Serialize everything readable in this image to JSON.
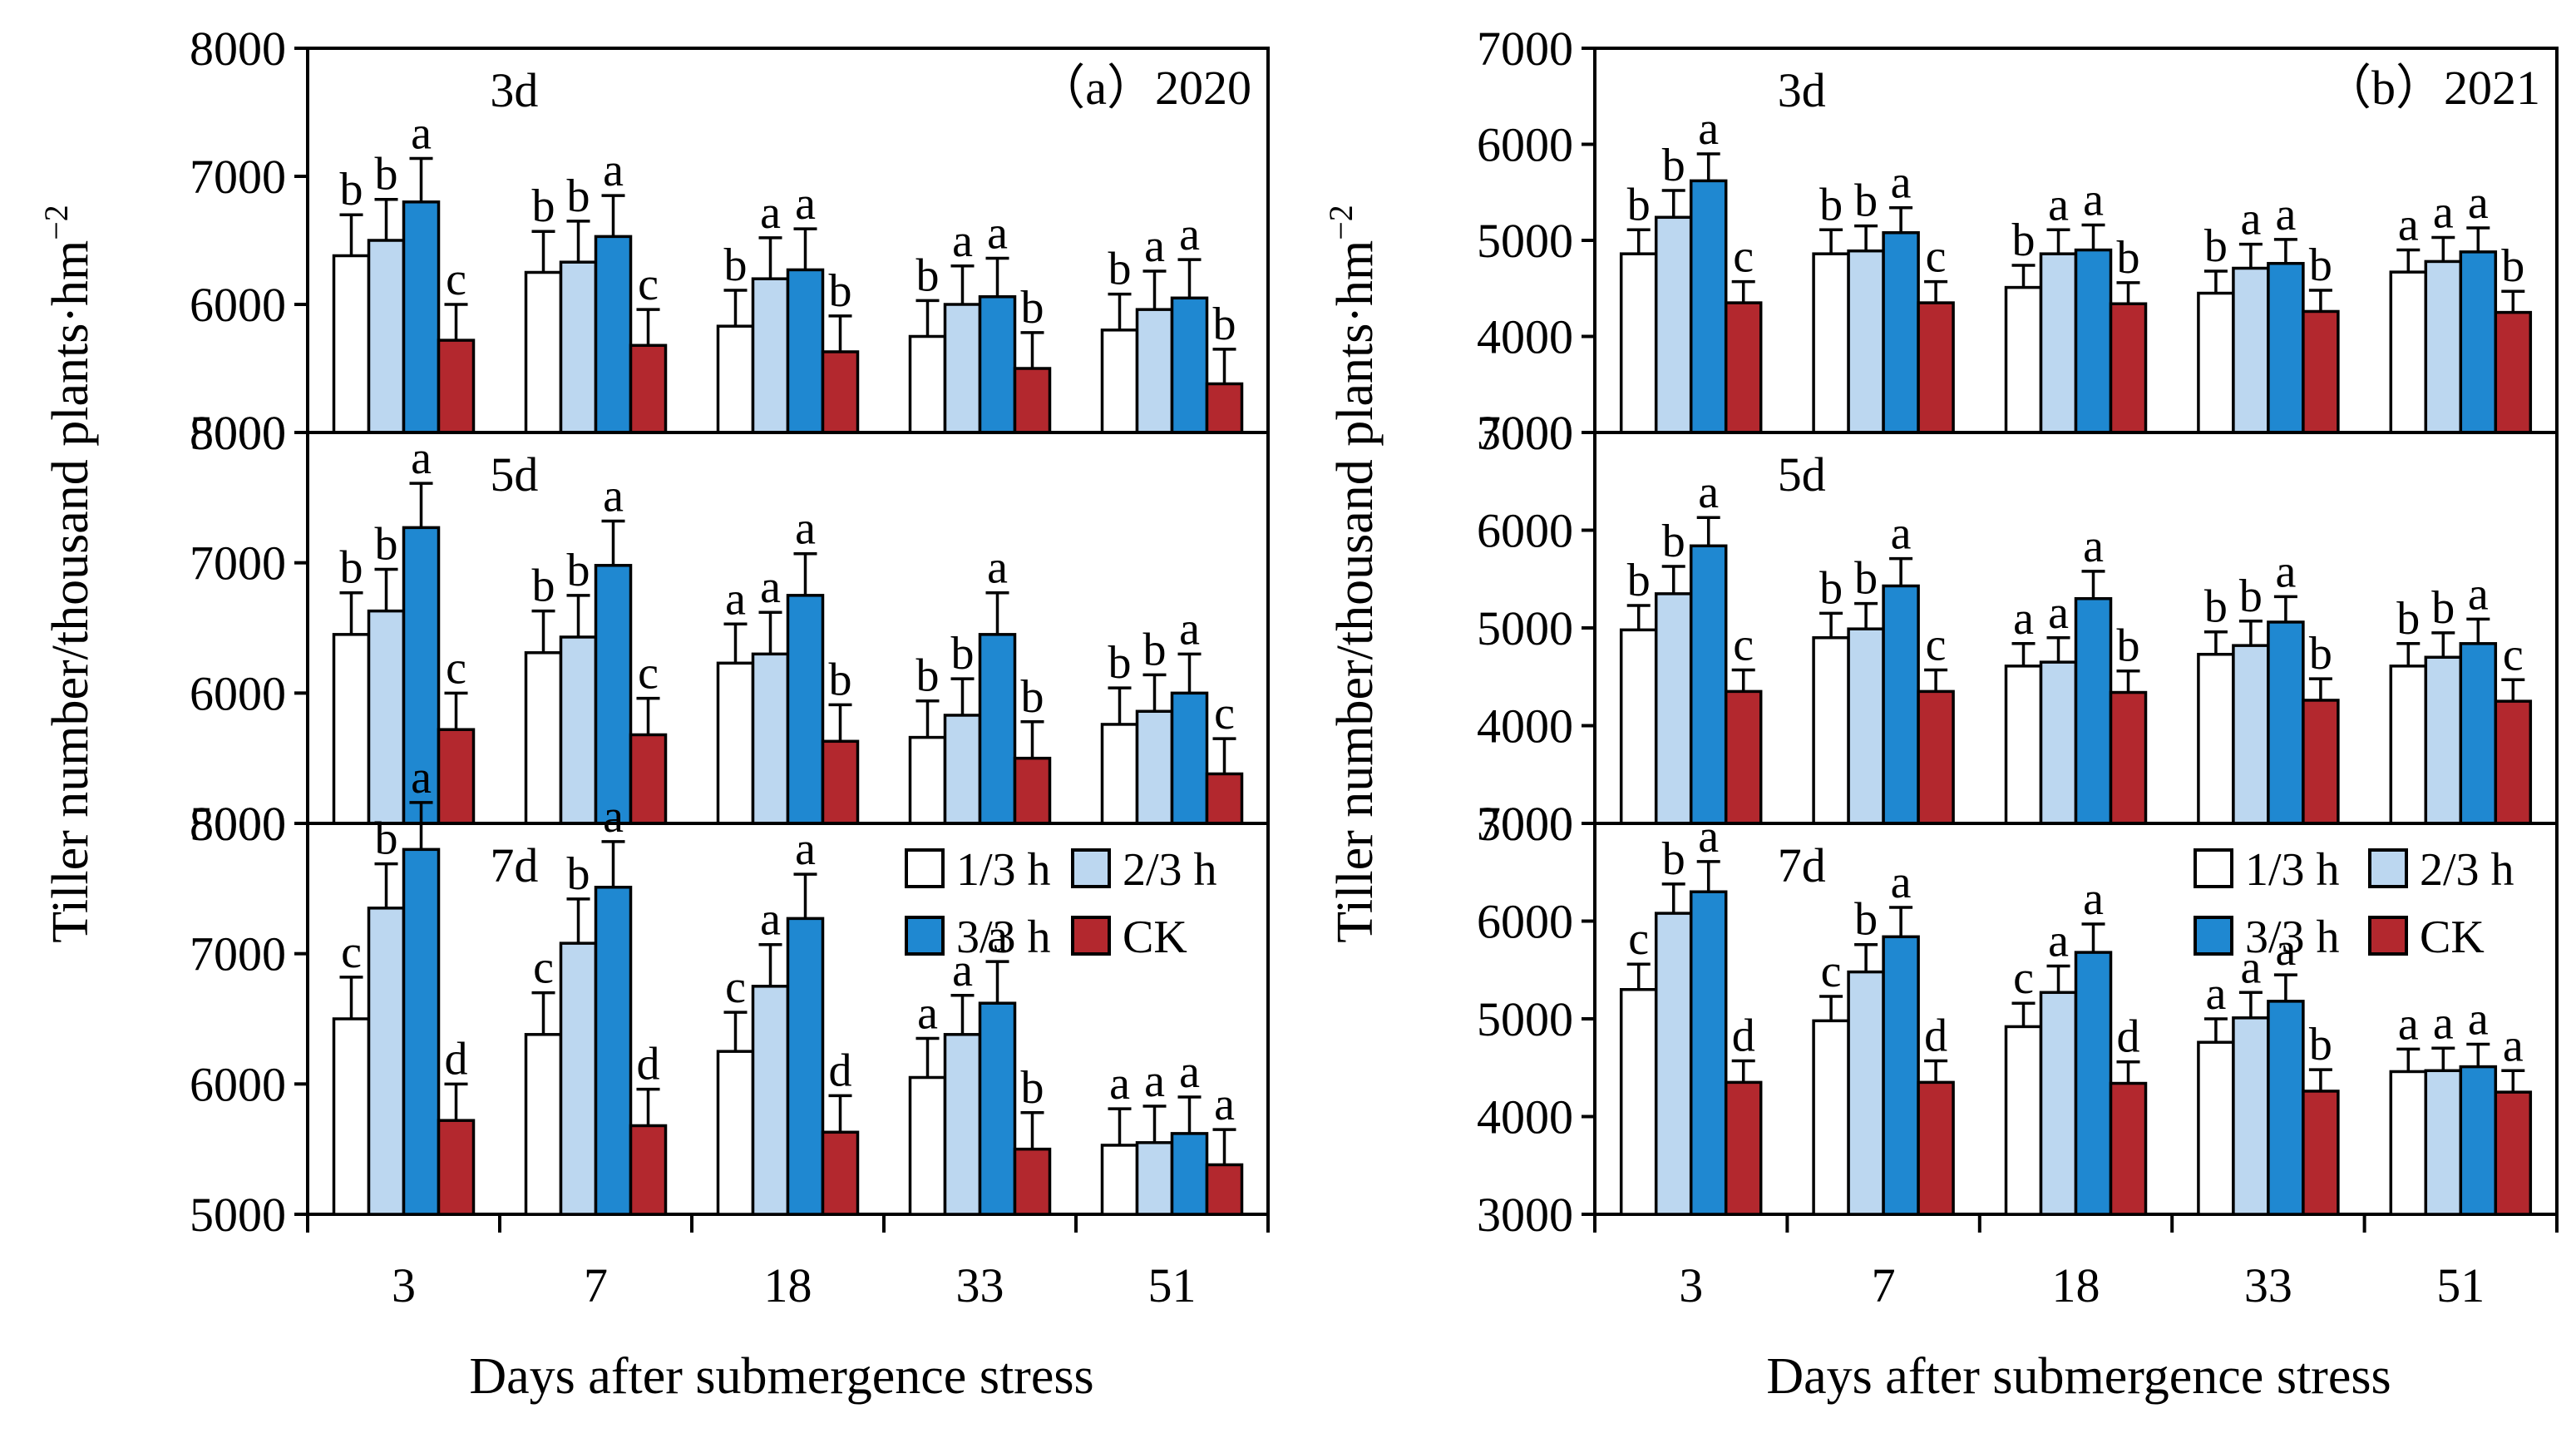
{
  "figure": {
    "ylabel": "Tiller number/thousand plants·hm",
    "ylabel_sup": "−2",
    "xlabel": "Days after submergence stress"
  },
  "legend": [
    {
      "key": "h13",
      "label": "1/3 h",
      "color": "#ffffff"
    },
    {
      "key": "h23",
      "label": "2/3 h",
      "color": "#bcd7f0"
    },
    {
      "key": "h33",
      "label": "3/3 h",
      "color": "#1f88d1"
    },
    {
      "key": "ck",
      "label": "CK",
      "color": "#b3282e"
    }
  ],
  "chart_data": [
    {
      "type": "bar",
      "panel": "(a)",
      "title": "（a）2020",
      "xlabel": "Days after submergence stress",
      "ylabel": "Tiller number/thousand plants·hm−2",
      "categories": [
        "3",
        "7",
        "18",
        "33",
        "51"
      ],
      "subplots": [
        {
          "label": "3d",
          "ylim": [
            5000,
            8000
          ],
          "yticks": [
            "5000",
            "6000",
            "7000",
            "8000"
          ],
          "series": [
            {
              "name": "1/3 h",
              "values": [
                6380,
                6250,
                5830,
                5750,
                5800
              ],
              "errors": [
                320,
                320,
                280,
                280,
                280
              ],
              "letters": [
                "b",
                "b",
                "b",
                "b",
                "b"
              ]
            },
            {
              "name": "2/3 h",
              "values": [
                6500,
                6330,
                6200,
                6000,
                5960
              ],
              "errors": [
                320,
                320,
                320,
                300,
                300
              ],
              "letters": [
                "b",
                "b",
                "a",
                "a",
                "a"
              ]
            },
            {
              "name": "3/3 h",
              "values": [
                6800,
                6530,
                6270,
                6060,
                6050
              ],
              "errors": [
                340,
                320,
                320,
                300,
                300
              ],
              "letters": [
                "a",
                "a",
                "a",
                "a",
                "a"
              ]
            },
            {
              "name": "CK",
              "values": [
                5720,
                5680,
                5630,
                5500,
                5380
              ],
              "errors": [
                280,
                280,
                280,
                280,
                270
              ],
              "letters": [
                "c",
                "c",
                "b",
                "b",
                "b"
              ]
            }
          ]
        },
        {
          "label": "5d",
          "ylim": [
            5000,
            8000
          ],
          "yticks": [
            "5000",
            "6000",
            "7000",
            "8000"
          ],
          "series": [
            {
              "name": "1/3 h",
              "values": [
                6450,
                6310,
                6230,
                5660,
                5760
              ],
              "errors": [
                320,
                320,
                300,
                280,
                280
              ],
              "letters": [
                "b",
                "b",
                "a",
                "b",
                "b"
              ]
            },
            {
              "name": "2/3 h",
              "values": [
                6630,
                6430,
                6300,
                5830,
                5860
              ],
              "errors": [
                320,
                320,
                320,
                280,
                280
              ],
              "letters": [
                "b",
                "b",
                "a",
                "b",
                "b"
              ]
            },
            {
              "name": "3/3 h",
              "values": [
                7270,
                6980,
                6750,
                6450,
                6000
              ],
              "errors": [
                340,
                340,
                320,
                320,
                300
              ],
              "letters": [
                "a",
                "a",
                "a",
                "a",
                "a"
              ]
            },
            {
              "name": "CK",
              "values": [
                5720,
                5680,
                5630,
                5500,
                5380
              ],
              "errors": [
                280,
                280,
                280,
                280,
                270
              ],
              "letters": [
                "c",
                "c",
                "b",
                "b",
                "c"
              ]
            }
          ]
        },
        {
          "label": "7d",
          "ylim": [
            5000,
            8000
          ],
          "yticks": [
            "5000",
            "6000",
            "7000",
            "8000"
          ],
          "series": [
            {
              "name": "1/3 h",
              "values": [
                6500,
                6380,
                6250,
                6050,
                5530
              ],
              "errors": [
                320,
                320,
                300,
                300,
                280
              ],
              "letters": [
                "c",
                "c",
                "c",
                "a",
                "a"
              ]
            },
            {
              "name": "2/3 h",
              "values": [
                7350,
                7080,
                6750,
                6380,
                5550
              ],
              "errors": [
                340,
                340,
                320,
                300,
                280
              ],
              "letters": [
                "b",
                "b",
                "a",
                "a",
                "a"
              ]
            },
            {
              "name": "3/3 h",
              "values": [
                7800,
                7510,
                7270,
                6620,
                5620
              ],
              "errors": [
                360,
                350,
                340,
                320,
                280
              ],
              "letters": [
                "a",
                "a",
                "a",
                "a",
                "a"
              ]
            },
            {
              "name": "CK",
              "values": [
                5720,
                5680,
                5630,
                5500,
                5380
              ],
              "errors": [
                280,
                280,
                280,
                280,
                270
              ],
              "letters": [
                "d",
                "d",
                "d",
                "b",
                "a"
              ]
            }
          ]
        }
      ]
    },
    {
      "type": "bar",
      "panel": "(b)",
      "title": "（b）2021",
      "xlabel": "Days after submergence stress",
      "ylabel": "Tiller number/thousand plants·hm−2",
      "categories": [
        "3",
        "7",
        "18",
        "33",
        "51"
      ],
      "subplots": [
        {
          "label": "3d",
          "ylim": [
            3000,
            7000
          ],
          "yticks": [
            "3000",
            "4000",
            "5000",
            "6000",
            "7000"
          ],
          "series": [
            {
              "name": "1/3 h",
              "values": [
                4860,
                4860,
                4510,
                4450,
                4670
              ],
              "errors": [
                250,
                250,
                230,
                230,
                230
              ],
              "letters": [
                "b",
                "b",
                "b",
                "b",
                "a"
              ]
            },
            {
              "name": "2/3 h",
              "values": [
                5240,
                4890,
                4860,
                4710,
                4780
              ],
              "errors": [
                280,
                260,
                250,
                250,
                250
              ],
              "letters": [
                "b",
                "b",
                "a",
                "a",
                "a"
              ]
            },
            {
              "name": "3/3 h",
              "values": [
                5620,
                5080,
                4900,
                4760,
                4880
              ],
              "errors": [
                280,
                260,
                260,
                250,
                250
              ],
              "letters": [
                "a",
                "a",
                "a",
                "a",
                "a"
              ]
            },
            {
              "name": "CK",
              "values": [
                4350,
                4350,
                4340,
                4260,
                4250
              ],
              "errors": [
                220,
                220,
                220,
                220,
                220
              ],
              "letters": [
                "c",
                "c",
                "b",
                "b",
                "b"
              ]
            }
          ]
        },
        {
          "label": "5d",
          "ylim": [
            3000,
            7000
          ],
          "yticks": [
            "3000",
            "4000",
            "5000",
            "6000",
            "7000"
          ],
          "series": [
            {
              "name": "1/3 h",
              "values": [
                4980,
                4900,
                4610,
                4730,
                4610
              ],
              "errors": [
                250,
                250,
                230,
                230,
                230
              ],
              "letters": [
                "b",
                "b",
                "a",
                "b",
                "b"
              ]
            },
            {
              "name": "2/3 h",
              "values": [
                5350,
                4990,
                4650,
                4820,
                4700
              ],
              "errors": [
                280,
                260,
                250,
                250,
                250
              ],
              "letters": [
                "b",
                "b",
                "a",
                "b",
                "b"
              ]
            },
            {
              "name": "3/3 h",
              "values": [
                5840,
                5430,
                5300,
                5060,
                4840
              ],
              "errors": [
                290,
                280,
                280,
                260,
                250
              ],
              "letters": [
                "a",
                "a",
                "a",
                "a",
                "a"
              ]
            },
            {
              "name": "CK",
              "values": [
                4350,
                4350,
                4340,
                4260,
                4250
              ],
              "errors": [
                220,
                220,
                220,
                220,
                220
              ],
              "letters": [
                "c",
                "c",
                "b",
                "b",
                "c"
              ]
            }
          ]
        },
        {
          "label": "7d",
          "ylim": [
            3000,
            7000
          ],
          "yticks": [
            "3000",
            "4000",
            "5000",
            "6000",
            "7000"
          ],
          "series": [
            {
              "name": "1/3 h",
              "values": [
                5300,
                4980,
                4920,
                4760,
                4460
              ],
              "errors": [
                260,
                250,
                240,
                240,
                230
              ],
              "letters": [
                "c",
                "c",
                "c",
                "a",
                "a"
              ]
            },
            {
              "name": "2/3 h",
              "values": [
                6080,
                5480,
                5270,
                5010,
                4470
              ],
              "errors": [
                300,
                280,
                270,
                260,
                230
              ],
              "letters": [
                "b",
                "b",
                "a",
                "a",
                "a"
              ]
            },
            {
              "name": "3/3 h",
              "values": [
                6300,
                5840,
                5680,
                5180,
                4510
              ],
              "errors": [
                310,
                300,
                290,
                270,
                230
              ],
              "letters": [
                "a",
                "a",
                "a",
                "a",
                "a"
              ]
            },
            {
              "name": "CK",
              "values": [
                4350,
                4350,
                4340,
                4260,
                4250
              ],
              "errors": [
                220,
                220,
                220,
                220,
                220
              ],
              "letters": [
                "d",
                "d",
                "d",
                "b",
                "a"
              ]
            }
          ]
        }
      ]
    }
  ]
}
